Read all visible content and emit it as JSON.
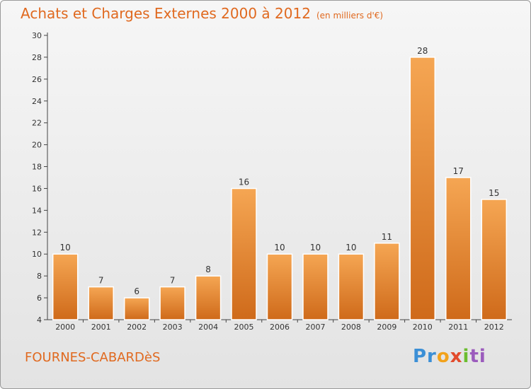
{
  "chart_data": {
    "type": "bar",
    "title": "Achats et Charges Externes 2000 à 2012",
    "subtitle": "(en milliers d'€)",
    "categories": [
      "2000",
      "2001",
      "2002",
      "2003",
      "2004",
      "2005",
      "2006",
      "2007",
      "2008",
      "2009",
      "2010",
      "2011",
      "2012"
    ],
    "values": [
      10,
      7,
      6,
      7,
      8,
      16,
      10,
      10,
      10,
      11,
      28,
      17,
      15
    ],
    "ylim": [
      4,
      30
    ],
    "yticks": [
      4,
      6,
      8,
      10,
      12,
      14,
      16,
      18,
      20,
      22,
      24,
      26,
      28,
      30
    ],
    "grid": false,
    "bar_color": "#e8852b",
    "bar_color_light": "#f5a653",
    "bar_color_dark": "#cf6a1a"
  },
  "footer": {
    "commune": "FOURNES-CABARDèS"
  },
  "logo": {
    "parts": [
      "Pr",
      "o",
      "x",
      "i",
      "ti"
    ]
  },
  "colors": {
    "title": "#e0691f",
    "axis": "#444444"
  }
}
